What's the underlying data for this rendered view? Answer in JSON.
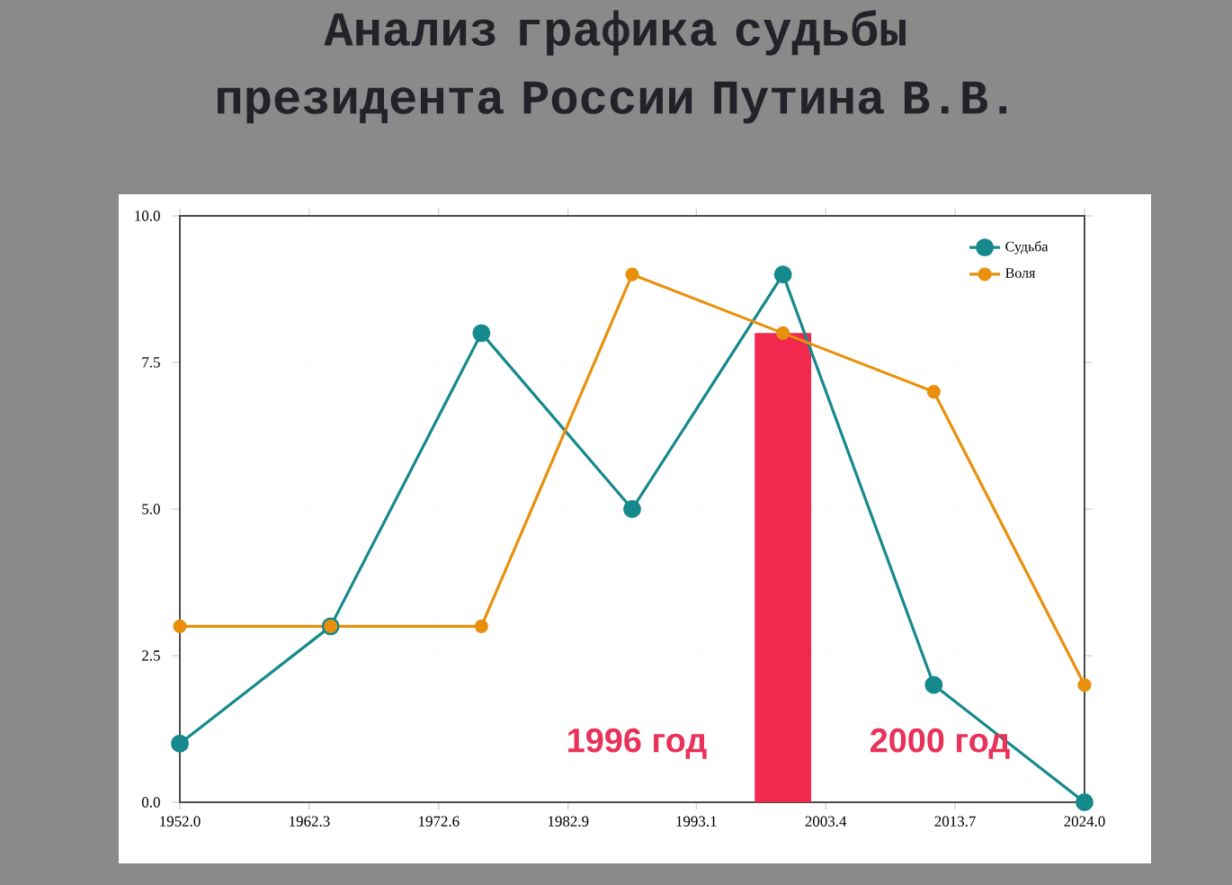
{
  "chart_data": {
    "type": "line",
    "title": "Анализ графика судьбы президента России Путина В.В.",
    "x": [
      1952,
      1964,
      1976,
      1988,
      2000,
      2012,
      2024
    ],
    "series": [
      {
        "name": "Судьба",
        "color": "#16898c",
        "values": [
          1,
          3,
          8,
          5,
          9,
          2,
          0
        ]
      },
      {
        "name": "Воля",
        "color": "#e8900c",
        "values": [
          3,
          3,
          3,
          9,
          8,
          7,
          2
        ]
      },
      {
        "type": "bar",
        "color": "#f2294f",
        "x": [
          2000
        ],
        "values": [
          8
        ]
      }
    ],
    "xlim": [
      1952,
      2024
    ],
    "xticks": [
      {
        "value": 1952,
        "label": "1952.0"
      },
      1962.3,
      1972.6,
      1982.9,
      1993.1,
      2003.4,
      2013.7,
      {
        "value": 2024,
        "label": "2024.0"
      }
    ],
    "ylim": [
      0,
      10
    ],
    "yticks": [
      {
        "value": 0,
        "label": "0.0"
      },
      2.5,
      {
        "value": 5,
        "label": "5.0"
      },
      7.5,
      {
        "value": 10,
        "label": "10.0"
      }
    ],
    "annotations": [
      "1996 год",
      "2000 год"
    ],
    "grid": true,
    "legend": "top right",
    "marker": "circle",
    "line_style": "solid"
  }
}
